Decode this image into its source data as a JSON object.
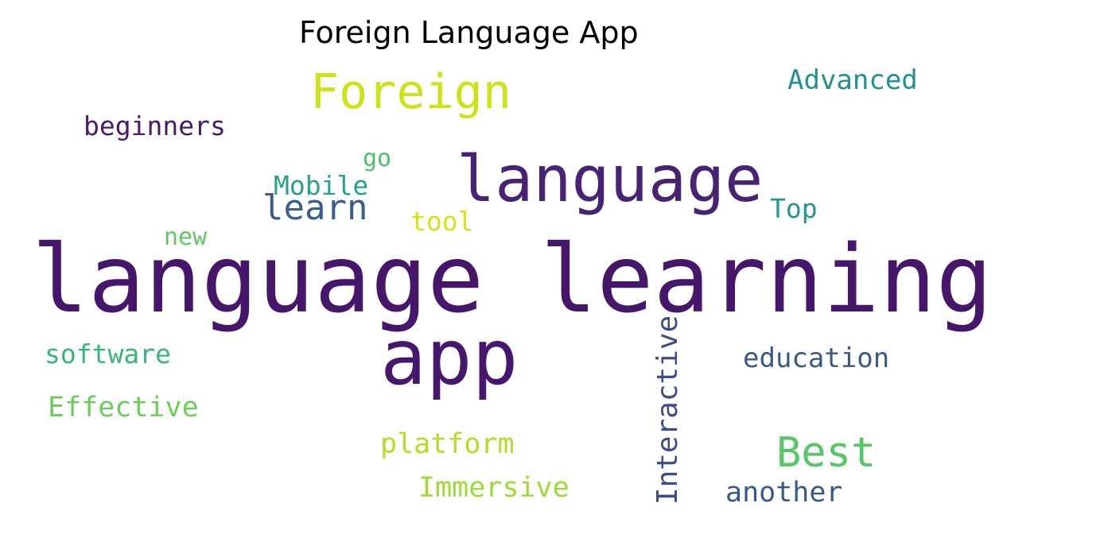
{
  "title": "Foreign Language App",
  "words": {
    "language_learning": {
      "text": "language learning",
      "color": "#46166b"
    },
    "app": {
      "text": "app",
      "color": "#46186d"
    },
    "language": {
      "text": "language",
      "color": "#482373"
    },
    "foreign": {
      "text": "Foreign",
      "color": "#cde11d"
    },
    "advanced": {
      "text": "Advanced",
      "color": "#21918c"
    },
    "beginners": {
      "text": "beginners",
      "color": "#471a6d"
    },
    "go": {
      "text": "go",
      "color": "#4cc16a"
    },
    "mobile": {
      "text": "Mobile",
      "color": "#25a187"
    },
    "learn": {
      "text": "learn",
      "color": "#3b5e8c"
    },
    "tool": {
      "text": "tool",
      "color": "#d7e219"
    },
    "top": {
      "text": "Top",
      "color": "#26958a"
    },
    "new": {
      "text": "new",
      "color": "#5ec962"
    },
    "software": {
      "text": "software",
      "color": "#35b779"
    },
    "effective": {
      "text": "Effective",
      "color": "#6ccd5a"
    },
    "interactive": {
      "text": "Interactive",
      "color": "#3e4c8a"
    },
    "education": {
      "text": "education",
      "color": "#3b5889"
    },
    "best": {
      "text": "Best",
      "color": "#56c667"
    },
    "platform": {
      "text": "platform",
      "color": "#b3dc2b"
    },
    "immersive": {
      "text": "Immersive",
      "color": "#a0da39"
    },
    "another": {
      "text": "another",
      "color": "#38598c"
    }
  }
}
